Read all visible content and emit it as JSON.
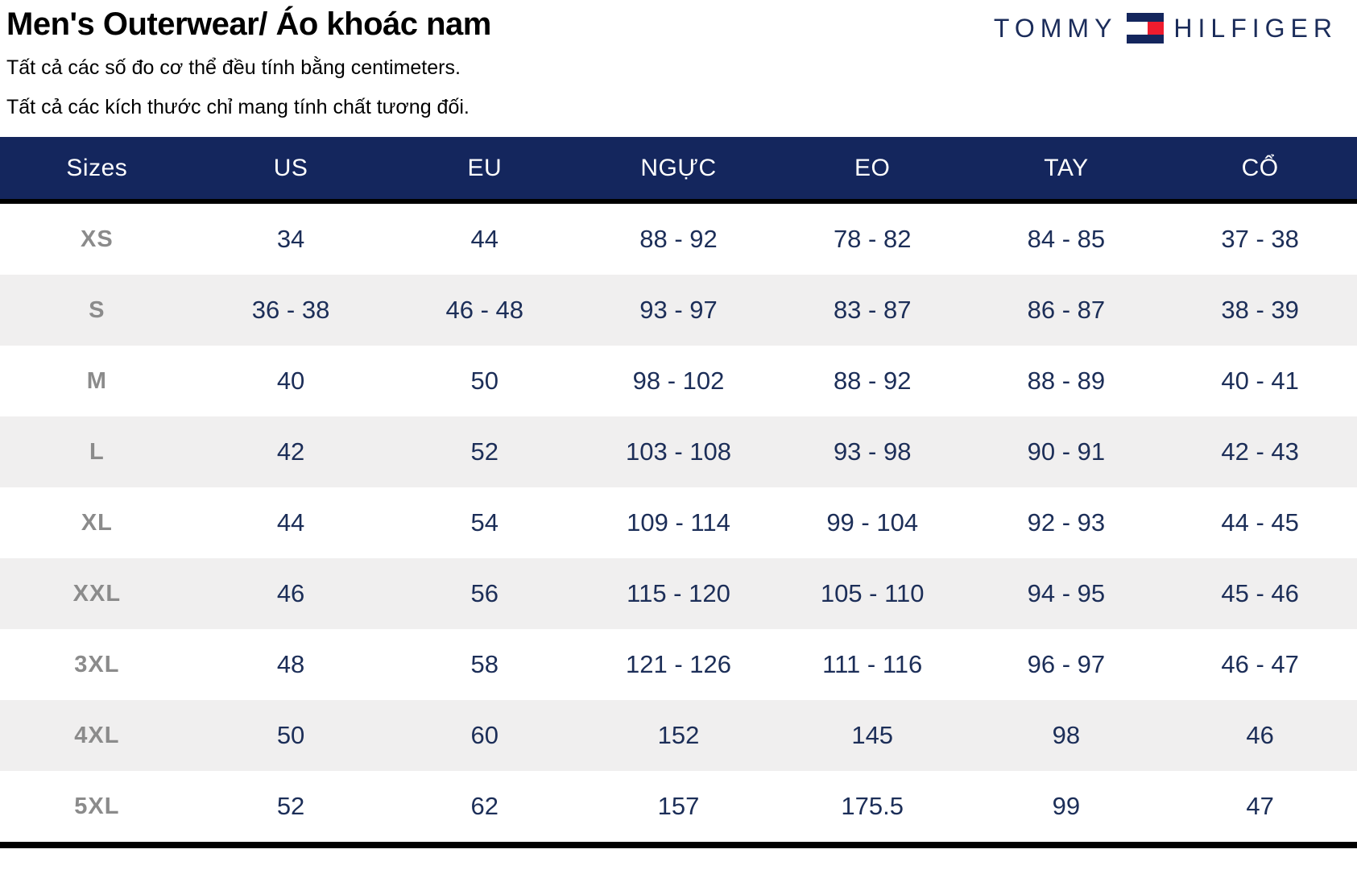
{
  "page": {
    "title": "Men's Outerwear/ Áo khoác nam",
    "note_line_1": "Tất cả các số đo cơ thể đều tính bằng centimeters.",
    "note_line_2": "Tất cả các kích thước chỉ mang tính chất tương đối."
  },
  "brand": {
    "word_left": "TOMMY",
    "word_right": "HILFIGER",
    "flag_icon": "tommy-hilfiger-flag"
  },
  "colors": {
    "header_bg": "#14265D",
    "header_text": "#FFFFFF",
    "value_text": "#1C2E58",
    "size_label_gray": "#8B8B8B",
    "row_stripe": "#F0EFEF",
    "brand_navy": "#1B2C5A",
    "brand_red": "#EE1C2E",
    "border_black": "#000000"
  },
  "chart_data": {
    "type": "table",
    "title": "Men's Outerwear/ Áo khoác nam",
    "headers": [
      "Sizes",
      "US",
      "EU",
      "NGỰC",
      "EO",
      "TAY",
      "CỔ"
    ],
    "rows": [
      [
        "XS",
        "34",
        "44",
        "88 - 92",
        "78 - 82",
        "84 - 85",
        "37 - 38"
      ],
      [
        "S",
        "36 - 38",
        "46 - 48",
        "93 - 97",
        "83 - 87",
        "86 - 87",
        "38 - 39"
      ],
      [
        "M",
        "40",
        "50",
        "98 - 102",
        "88 - 92",
        "88 - 89",
        "40 - 41"
      ],
      [
        "L",
        "42",
        "52",
        "103 - 108",
        "93 - 98",
        "90 - 91",
        "42 - 43"
      ],
      [
        "XL",
        "44",
        "54",
        "109 - 114",
        "99 - 104",
        "92 - 93",
        "44 - 45"
      ],
      [
        "XXL",
        "46",
        "56",
        "115 - 120",
        "105 - 110",
        "94 - 95",
        "45 - 46"
      ],
      [
        "3XL",
        "48",
        "58",
        "121 - 126",
        "111 - 116",
        "96 - 97",
        "46 - 47"
      ],
      [
        "4XL",
        "50",
        "60",
        "152",
        "145",
        "98",
        "46"
      ],
      [
        "5XL",
        "52",
        "62",
        "157",
        "175.5",
        "99",
        "47"
      ]
    ]
  }
}
